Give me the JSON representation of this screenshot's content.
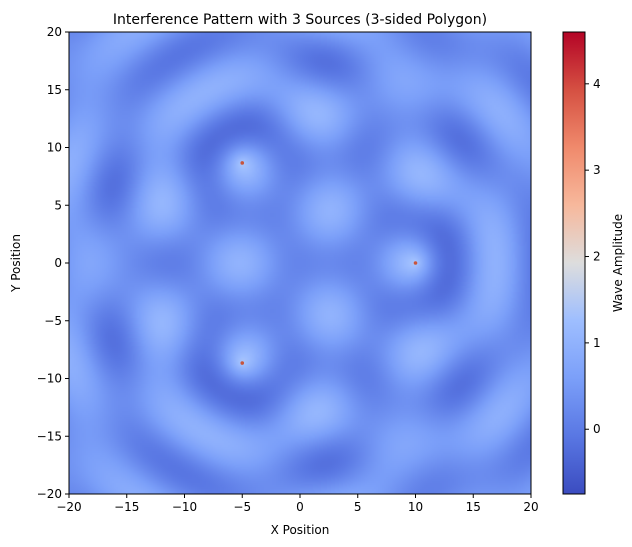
{
  "chart_data": {
    "type": "heatmap",
    "title": "Interference Pattern with 3 Sources (3-sided Polygon)",
    "xlabel": "X Position",
    "ylabel": "Y Position",
    "xlim": [
      -20,
      20
    ],
    "ylim": [
      -20,
      20
    ],
    "x_ticks": [
      -20,
      -15,
      -10,
      -5,
      0,
      5,
      10,
      15,
      20
    ],
    "y_ticks": [
      -20,
      -15,
      -10,
      -5,
      0,
      5,
      10,
      15,
      20
    ],
    "sources": [
      {
        "x": 10,
        "y": 0
      },
      {
        "x": -5,
        "y": 8.66
      },
      {
        "x": -5,
        "y": -8.66
      }
    ],
    "colorbar": {
      "label": "Wave Amplitude",
      "range": [
        -0.75,
        4.6
      ],
      "ticks": [
        0,
        1,
        2,
        3,
        4
      ],
      "colormap": "coolwarm"
    },
    "grid": false
  }
}
